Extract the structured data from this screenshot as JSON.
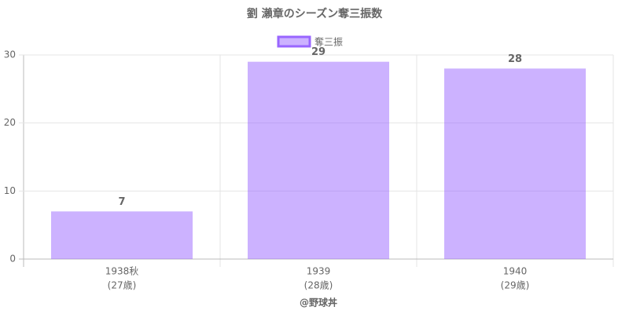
{
  "chart_data": {
    "type": "bar",
    "title": "劉 瀨章のシーズン奪三振数",
    "categories": [
      [
        "1938秋",
        "(27歳)"
      ],
      [
        "1939",
        "(28歳)"
      ],
      [
        "1940",
        "(29歳)"
      ]
    ],
    "series": [
      {
        "name": "奪三振",
        "color": "#9966ff",
        "values": [
          7,
          29,
          28
        ]
      }
    ],
    "x_label": "@野球丼",
    "ylim": [
      0,
      30
    ],
    "yticks": [
      0,
      10,
      20,
      30
    ],
    "grid": true,
    "legend": "top"
  }
}
